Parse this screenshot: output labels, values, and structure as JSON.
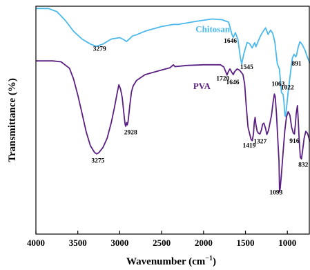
{
  "chart_data": {
    "type": "line",
    "title": "",
    "xlabel": "Wavenumber (cm",
    "xlabel_sup": "−1",
    "xlabel_close": ")",
    "ylabel": "Transmittance (%)",
    "x_reversed": true,
    "xlim": [
      4000,
      730
    ],
    "x_ticks": [
      "4000",
      "3500",
      "3000",
      "2500",
      "2000",
      "1500",
      "1000"
    ],
    "x_tick_values": [
      4000,
      3500,
      3000,
      2500,
      2000,
      1500,
      1000
    ],
    "y_ticks_shown": false,
    "grid": false,
    "series": [
      {
        "name": "Chitosan",
        "color": "#4ab8ec",
        "points": [
          [
            4000,
            99.0
          ],
          [
            3850,
            99.0
          ],
          [
            3750,
            97.6
          ],
          [
            3650,
            93.8
          ],
          [
            3550,
            89.0
          ],
          [
            3450,
            85.6
          ],
          [
            3350,
            83.4
          ],
          [
            3279,
            82.4
          ],
          [
            3200,
            83.4
          ],
          [
            3100,
            85.6
          ],
          [
            3000,
            86.2
          ],
          [
            2950,
            85.3
          ],
          [
            2920,
            84.5
          ],
          [
            2880,
            85.8
          ],
          [
            2850,
            86.9
          ],
          [
            2800,
            87.5
          ],
          [
            2700,
            89.0
          ],
          [
            2500,
            91.1
          ],
          [
            2360,
            92.0
          ],
          [
            2300,
            92.0
          ],
          [
            2100,
            93.3
          ],
          [
            1900,
            94.4
          ],
          [
            1780,
            94.1
          ],
          [
            1700,
            93.0
          ],
          [
            1660,
            87.5
          ],
          [
            1646,
            86.3
          ],
          [
            1620,
            88.4
          ],
          [
            1590,
            85.4
          ],
          [
            1560,
            77.4
          ],
          [
            1545,
            74.6
          ],
          [
            1520,
            79.0
          ],
          [
            1480,
            84.1
          ],
          [
            1450,
            83.5
          ],
          [
            1420,
            81.7
          ],
          [
            1390,
            84.0
          ],
          [
            1375,
            82.2
          ],
          [
            1340,
            85.3
          ],
          [
            1320,
            87.0
          ],
          [
            1290,
            88.9
          ],
          [
            1260,
            90.5
          ],
          [
            1230,
            87.6
          ],
          [
            1200,
            89.5
          ],
          [
            1175,
            88.1
          ],
          [
            1150,
            84.4
          ],
          [
            1120,
            74.6
          ],
          [
            1095,
            72.5
          ],
          [
            1070,
            62.1
          ],
          [
            1050,
            61.3
          ],
          [
            1040,
            57.6
          ],
          [
            1030,
            52.2
          ],
          [
            1022,
            51.6
          ],
          [
            1010,
            55.4
          ],
          [
            990,
            62.5
          ],
          [
            960,
            71.7
          ],
          [
            940,
            77.3
          ],
          [
            920,
            78.9
          ],
          [
            900,
            77.8
          ],
          [
            891,
            78.5
          ],
          [
            870,
            82.1
          ],
          [
            850,
            84.4
          ],
          [
            820,
            83.0
          ],
          [
            790,
            80.7
          ],
          [
            760,
            77.5
          ],
          [
            730,
            75.0
          ]
        ]
      },
      {
        "name": "PVA",
        "color": "#5a1f82",
        "points": [
          [
            4000,
            76.0
          ],
          [
            3800,
            76.0
          ],
          [
            3700,
            75.6
          ],
          [
            3600,
            72.8
          ],
          [
            3550,
            68.0
          ],
          [
            3500,
            61.0
          ],
          [
            3450,
            53.0
          ],
          [
            3400,
            44.9
          ],
          [
            3350,
            38.8
          ],
          [
            3300,
            35.8
          ],
          [
            3275,
            35.2
          ],
          [
            3250,
            35.7
          ],
          [
            3200,
            38.0
          ],
          [
            3150,
            42.1
          ],
          [
            3100,
            49.1
          ],
          [
            3060,
            56.1
          ],
          [
            3030,
            62.1
          ],
          [
            3010,
            65.5
          ],
          [
            2990,
            63.6
          ],
          [
            2970,
            60.0
          ],
          [
            2945,
            51.0
          ],
          [
            2935,
            48.0
          ],
          [
            2928,
            47.3
          ],
          [
            2918,
            48.9
          ],
          [
            2910,
            47.9
          ],
          [
            2900,
            49.4
          ],
          [
            2880,
            56.4
          ],
          [
            2860,
            62.4
          ],
          [
            2840,
            65.0
          ],
          [
            2800,
            67.4
          ],
          [
            2700,
            69.9
          ],
          [
            2600,
            71.0
          ],
          [
            2500,
            72.0
          ],
          [
            2400,
            73.0
          ],
          [
            2360,
            74.3
          ],
          [
            2340,
            73.5
          ],
          [
            2200,
            74.0
          ],
          [
            2000,
            74.3
          ],
          [
            1800,
            74.3
          ],
          [
            1760,
            73.4
          ],
          [
            1735,
            71.2
          ],
          [
            1720,
            69.8
          ],
          [
            1705,
            71.2
          ],
          [
            1685,
            72.5
          ],
          [
            1660,
            70.8
          ],
          [
            1646,
            70.0
          ],
          [
            1630,
            71.2
          ],
          [
            1600,
            72.5
          ],
          [
            1570,
            71.9
          ],
          [
            1550,
            71.0
          ],
          [
            1530,
            70.0
          ],
          [
            1510,
            66.0
          ],
          [
            1490,
            56.0
          ],
          [
            1470,
            47.0
          ],
          [
            1440,
            42.5
          ],
          [
            1430,
            41.3
          ],
          [
            1419,
            41.0
          ],
          [
            1405,
            44.0
          ],
          [
            1395,
            49.0
          ],
          [
            1385,
            51.2
          ],
          [
            1375,
            48.0
          ],
          [
            1360,
            45.1
          ],
          [
            1345,
            44.3
          ],
          [
            1327,
            43.9
          ],
          [
            1310,
            45.7
          ],
          [
            1295,
            48.2
          ],
          [
            1280,
            48.7
          ],
          [
            1260,
            46.3
          ],
          [
            1245,
            43.7
          ],
          [
            1225,
            45.5
          ],
          [
            1205,
            49.2
          ],
          [
            1190,
            52.0
          ],
          [
            1170,
            58.0
          ],
          [
            1155,
            61.5
          ],
          [
            1145,
            60.3
          ],
          [
            1130,
            53.0
          ],
          [
            1115,
            42.0
          ],
          [
            1100,
            32.0
          ],
          [
            1093,
            18.5
          ],
          [
            1085,
            20.3
          ],
          [
            1070,
            26.5
          ],
          [
            1050,
            36.2
          ],
          [
            1030,
            45.6
          ],
          [
            1010,
            51.5
          ],
          [
            990,
            53.7
          ],
          [
            970,
            52.2
          ],
          [
            950,
            47.0
          ],
          [
            930,
            44.4
          ],
          [
            916,
            43.9
          ],
          [
            905,
            48.0
          ],
          [
            895,
            52.8
          ],
          [
            880,
            56.4
          ],
          [
            870,
            50.0
          ],
          [
            860,
            42.0
          ],
          [
            845,
            33.8
          ],
          [
            832,
            33.0
          ],
          [
            820,
            36.2
          ],
          [
            800,
            42.0
          ],
          [
            780,
            45.1
          ],
          [
            760,
            44.2
          ],
          [
            740,
            41.8
          ],
          [
            730,
            40.5
          ]
        ]
      }
    ],
    "series_labels": [
      {
        "text": "Chitosan",
        "x": 1890,
        "y": 88.6,
        "color": "#4ab8ec"
      },
      {
        "text": "PVA",
        "x": 2020,
        "y": 63.6,
        "color": "#5a1f82"
      }
    ],
    "annotations": [
      {
        "text": "3279",
        "x": 3240,
        "y": 80.5
      },
      {
        "text": "1646",
        "x": 1680,
        "y": 84.0
      },
      {
        "text": "1545",
        "x": 1485,
        "y": 72.5
      },
      {
        "text": "891",
        "x": 891,
        "y": 74.0
      },
      {
        "text": "1720",
        "x": 1770,
        "y": 67.5
      },
      {
        "text": "1646",
        "x": 1653,
        "y": 65.8
      },
      {
        "text": "1063",
        "x": 1110,
        "y": 65.0
      },
      {
        "text": "1022",
        "x": 1000,
        "y": 63.5
      },
      {
        "text": "2928",
        "x": 2870,
        "y": 43.8
      },
      {
        "text": "3275",
        "x": 3260,
        "y": 31.3
      },
      {
        "text": "1419",
        "x": 1455,
        "y": 38.0
      },
      {
        "text": "1327",
        "x": 1325,
        "y": 39.8
      },
      {
        "text": "916",
        "x": 916,
        "y": 40.0
      },
      {
        "text": "832",
        "x": 810,
        "y": 29.5
      },
      {
        "text": "1093",
        "x": 1135,
        "y": 17.5
      }
    ]
  }
}
